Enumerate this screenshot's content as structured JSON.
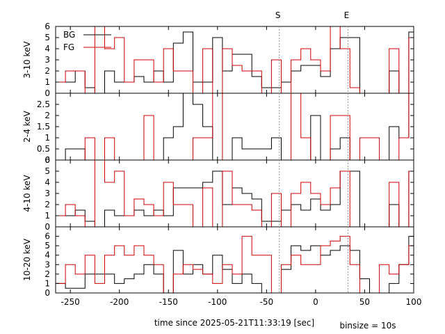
{
  "chart_data": {
    "type": "line",
    "step": true,
    "xlabel": "time since 2025-05-21T11:33:19 [sec]",
    "note": "binsize = 10s",
    "xlim": [
      -265,
      100
    ],
    "xticks": [
      -250,
      -200,
      -150,
      -100,
      -50,
      0,
      50,
      100
    ],
    "markers": [
      {
        "label": "S",
        "x": -37
      },
      {
        "label": "E",
        "x": 33
      }
    ],
    "legend": {
      "position": "top-left",
      "entries": [
        "BG",
        "FG"
      ]
    },
    "colors": {
      "BG": "#000000",
      "FG": "#cc0000",
      "marker": "#999999"
    },
    "panels": [
      {
        "ylabel": "3-10 keV",
        "ylim": [
          0,
          6
        ],
        "yticks": [
          0,
          1,
          2,
          3,
          4,
          5,
          6
        ],
        "x_edges": [
          -265,
          -255,
          -245,
          -235,
          -225,
          -215,
          -205,
          -195,
          -185,
          -175,
          -165,
          -155,
          -145,
          -135,
          -125,
          -115,
          -105,
          -95,
          -85,
          -75,
          -65,
          -55,
          -45,
          -35,
          -25,
          -15,
          -5,
          5,
          15,
          25,
          35,
          45,
          55,
          65,
          75,
          85,
          95,
          100
        ],
        "series": [
          {
            "name": "BG",
            "values": [
              1,
              1,
              2,
              0.5,
              0,
              2,
              1,
              1,
              1.5,
              1,
              2,
              1,
              4.5,
              5.5,
              1,
              1,
              5,
              2,
              3.5,
              3.5,
              1.5,
              0.5,
              0.5,
              1,
              2,
              2.5,
              2.5,
              1.5,
              4,
              5,
              5,
              0,
              0,
              0,
              2,
              0,
              5.5
            ]
          },
          {
            "name": "FG",
            "values": [
              1,
              2,
              2,
              0,
              6,
              4,
              5,
              1,
              3,
              3,
              1,
              4,
              2,
              2,
              0,
              4,
              0,
              4,
              2.5,
              2,
              2,
              0,
              3,
              0,
              3,
              4,
              3,
              2,
              6,
              4,
              0.5,
              0,
              0,
              0,
              4,
              0,
              5
            ]
          }
        ]
      },
      {
        "ylabel": "2-4 keV",
        "ylim": [
          0,
          3
        ],
        "yticks": [
          0,
          0.5,
          1,
          1.5,
          2,
          2.5
        ],
        "x_edges": [
          -265,
          -255,
          -245,
          -235,
          -225,
          -215,
          -205,
          -195,
          -185,
          -175,
          -165,
          -155,
          -145,
          -135,
          -125,
          -115,
          -105,
          -95,
          -85,
          -75,
          -65,
          -55,
          -45,
          -35,
          -25,
          -15,
          -5,
          5,
          15,
          25,
          35,
          45,
          55,
          65,
          75,
          85,
          95,
          100
        ],
        "series": [
          {
            "name": "BG",
            "values": [
              0,
              0.5,
              0.5,
              0,
              0,
              0,
              0,
              0,
              0,
              0,
              0,
              1,
              1.5,
              3,
              2.5,
              1.5,
              0,
              0,
              1,
              0.5,
              0.5,
              0.5,
              1,
              0,
              0,
              0,
              2,
              0,
              0.5,
              1,
              0,
              0,
              0,
              0,
              1.5,
              1,
              3
            ]
          },
          {
            "name": "FG",
            "values": [
              0,
              0,
              0,
              1,
              0,
              1,
              0,
              0,
              0,
              2,
              0,
              0,
              0,
              0,
              1,
              1,
              3,
              0,
              0,
              0,
              0,
              0,
              0,
              0,
              3,
              1,
              0,
              0,
              2,
              2,
              0,
              1,
              1,
              0,
              0,
              1,
              3
            ]
          }
        ]
      },
      {
        "ylabel": "4-10 keV",
        "ylim": [
          0,
          6
        ],
        "yticks": [
          0,
          1,
          2,
          3,
          4,
          5,
          6
        ],
        "x_edges": [
          -265,
          -255,
          -245,
          -235,
          -225,
          -215,
          -205,
          -195,
          -185,
          -175,
          -165,
          -155,
          -145,
          -135,
          -125,
          -115,
          -105,
          -95,
          -85,
          -75,
          -65,
          -55,
          -45,
          -35,
          -25,
          -15,
          -5,
          5,
          15,
          25,
          35,
          45,
          55,
          65,
          75,
          85,
          95,
          100
        ],
        "series": [
          {
            "name": "BG",
            "values": [
              1,
              1,
              1.5,
              0.5,
              0,
              1.5,
              1,
              1,
              1.5,
              1,
              1.5,
              1,
              3.5,
              3.5,
              3.5,
              4,
              5,
              2,
              3.5,
              3,
              2.5,
              0.5,
              0.5,
              1.5,
              2,
              1.5,
              2.5,
              1.5,
              2,
              5,
              5,
              0,
              0,
              0,
              2,
              0,
              5
            ]
          },
          {
            "name": "FG",
            "values": [
              1,
              2,
              1,
              0,
              6,
              4,
              5,
              1,
              2.5,
              2,
              1,
              4,
              2,
              2,
              0,
              3.5,
              0,
              5,
              2,
              2,
              1.5,
              0,
              3,
              0,
              3,
              4,
              3,
              2,
              3.5,
              5,
              0,
              0,
              0,
              0,
              4,
              0,
              5
            ]
          }
        ]
      },
      {
        "ylabel": "10-20 keV",
        "ylim": [
          0,
          7
        ],
        "yticks": [
          0,
          1,
          2,
          3,
          4,
          5,
          6
        ],
        "x_edges": [
          -265,
          -255,
          -245,
          -235,
          -225,
          -215,
          -205,
          -195,
          -185,
          -175,
          -165,
          -155,
          -145,
          -135,
          -125,
          -115,
          -105,
          -95,
          -85,
          -75,
          -65,
          -55,
          -45,
          -35,
          -25,
          -15,
          -5,
          5,
          15,
          25,
          35,
          45,
          55,
          65,
          75,
          85,
          95,
          100
        ],
        "series": [
          {
            "name": "BG",
            "values": [
              1,
              0.5,
              0.5,
              2,
              2,
              2,
              1,
              1.5,
              2,
              3,
              2,
              0,
              4.5,
              2,
              3,
              2,
              4,
              2.5,
              1,
              2,
              1,
              0,
              0,
              2.5,
              5,
              4.5,
              5,
              4,
              4.5,
              5,
              4.5,
              1.5,
              0,
              0,
              1,
              3,
              6
            ]
          },
          {
            "name": "FG",
            "values": [
              1,
              3,
              2,
              4,
              1,
              4,
              5,
              4,
              5,
              4,
              3,
              0,
              2,
              3,
              2.5,
              2,
              1,
              3,
              2,
              6,
              4,
              4,
              0,
              3,
              4,
              3,
              3,
              5,
              5.5,
              6,
              3,
              0,
              0,
              3,
              2,
              3,
              5
            ]
          }
        ]
      }
    ]
  }
}
